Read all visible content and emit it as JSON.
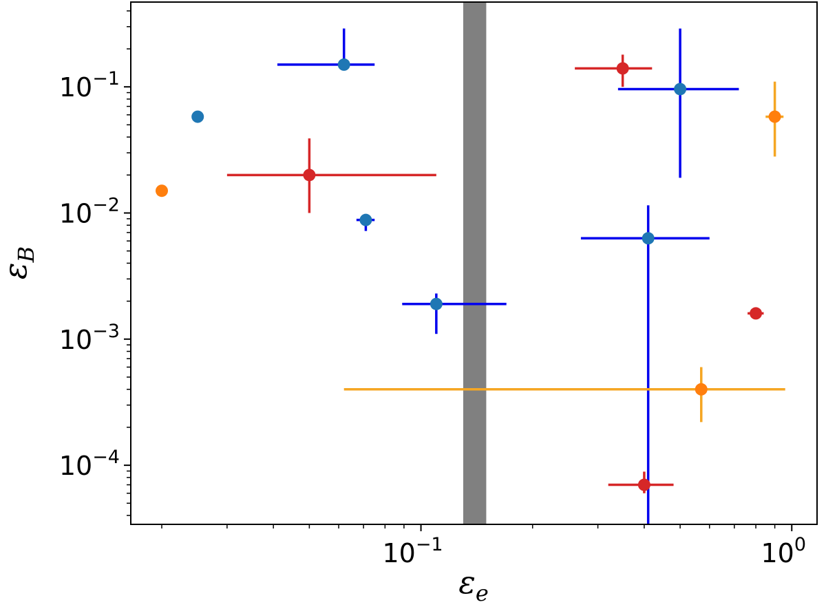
{
  "chart_data": {
    "type": "scatter",
    "xscale": "log",
    "yscale": "log",
    "xlim": [
      0.0165,
      1.17
    ],
    "ylim": [
      3.4e-05,
      0.47
    ],
    "xlabel": "ε_e",
    "ylabel": "ε_B",
    "x_ticks": [
      {
        "value": 0.1,
        "label": "10^-1"
      },
      {
        "value": 1,
        "label": "10^0"
      }
    ],
    "y_ticks": [
      {
        "value": 0.0001,
        "label": "10^-4"
      },
      {
        "value": 0.001,
        "label": "10^-3"
      },
      {
        "value": 0.01,
        "label": "10^-2"
      },
      {
        "value": 0.1,
        "label": "10^-1"
      }
    ],
    "shaded_band": {
      "x0": 0.13,
      "x1": 0.15,
      "color": "#808080"
    },
    "grid": false,
    "series": [
      {
        "name": "blue points",
        "marker_color": "#1f77b4",
        "errorbar_color": "#0000ee",
        "points": [
          {
            "x": 0.025,
            "y": 0.058
          },
          {
            "x": 0.062,
            "y": 0.15,
            "x_err": [
              0.041,
              0.075
            ],
            "y_err": [
              0.15,
              0.29
            ]
          },
          {
            "x": 0.071,
            "y": 0.0088,
            "x_err": [
              0.067,
              0.075
            ],
            "y_err": [
              0.0072,
              0.0088
            ]
          },
          {
            "x": 0.11,
            "y": 0.0019,
            "x_err": [
              0.089,
              0.17
            ],
            "y_err": [
              0.0011,
              0.0023
            ]
          },
          {
            "x": 0.41,
            "y": 0.0063,
            "x_err": [
              0.27,
              0.6
            ],
            "y_err": [
              3e-05,
              0.0115
            ]
          },
          {
            "x": 0.5,
            "y": 0.096,
            "x_err": [
              0.34,
              0.72
            ],
            "y_err": [
              0.019,
              0.29
            ]
          }
        ]
      },
      {
        "name": "red points",
        "marker_color": "#d62728",
        "errorbar_color": "#d62728",
        "points": [
          {
            "x": 0.05,
            "y": 0.02,
            "x_err": [
              0.03,
              0.11
            ],
            "y_err": [
              0.01,
              0.039
            ]
          },
          {
            "x": 0.35,
            "y": 0.14,
            "x_err": [
              0.26,
              0.42
            ],
            "y_err": [
              0.1,
              0.18
            ]
          },
          {
            "x": 0.4,
            "y": 7e-05,
            "x_err": [
              0.32,
              0.48
            ],
            "y_err": [
              6e-05,
              8.9e-05
            ]
          },
          {
            "x": 0.8,
            "y": 0.0016,
            "x_err": [
              0.76,
              0.84
            ]
          }
        ]
      },
      {
        "name": "orange points",
        "marker_color": "#ff7f0e",
        "errorbar_color": "#f5a623",
        "points": [
          {
            "x": 0.02,
            "y": 0.015
          },
          {
            "x": 0.57,
            "y": 0.0004,
            "x_err": [
              0.062,
              0.96
            ],
            "y_err": [
              0.00022,
              0.0006
            ]
          },
          {
            "x": 0.9,
            "y": 0.058,
            "x_err": [
              0.85,
              0.95
            ],
            "y_err": [
              0.028,
              0.11
            ]
          }
        ]
      }
    ]
  }
}
